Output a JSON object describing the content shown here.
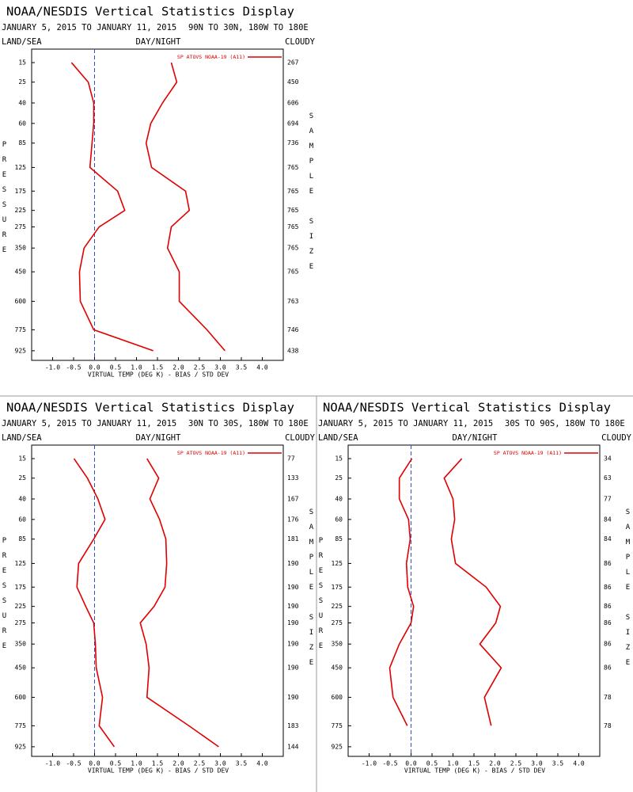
{
  "chart_data": [
    {
      "type": "line",
      "title": "NOAA/NESDIS Vertical Statistics Display",
      "date_range": "JANUARY 5, 2015 TO JANUARY 11, 2015",
      "region": "90N TO 30N, 180W TO 180E",
      "land_sea": "LAND/SEA",
      "day_night": "DAY/NIGHT",
      "cloudy": "CLOUDY",
      "ylabel": "PRESSURE",
      "y2label": "SAMPLE SIZE",
      "xlabel": "VIRTUAL TEMP (DEG K) - BIAS / STD DEV",
      "legend": "SP ATOVS NOAA-19 (A11)",
      "y": [
        15,
        25,
        40,
        60,
        85,
        125,
        175,
        225,
        275,
        350,
        450,
        600,
        775,
        925
      ],
      "sample_size": [
        267,
        450,
        606,
        694,
        736,
        765,
        765,
        765,
        765,
        765,
        765,
        763,
        746,
        438
      ],
      "ylim": [
        10,
        1000
      ],
      "xlim": [
        -1.5,
        4.5
      ],
      "xticks": [
        {
          "value": -1,
          "label": "-1.0"
        },
        {
          "value": -0.5,
          "label": "-0.5"
        },
        {
          "value": 0,
          "label": "0.0"
        },
        {
          "value": 0.5,
          "label": "0.5"
        },
        {
          "value": 1,
          "label": "1.0"
        },
        {
          "value": 1.5,
          "label": "1.5"
        },
        {
          "value": 2,
          "label": "2.0"
        },
        {
          "value": 2.5,
          "label": "2.5"
        },
        {
          "value": 3,
          "label": "3.0"
        },
        {
          "value": 3.5,
          "label": "3.5"
        },
        {
          "value": 4,
          "label": "4.0"
        }
      ],
      "zero_line": true,
      "series": [
        {
          "color": "#e00000",
          "values": [
            -0.55,
            -0.15,
            -0.02,
            -0.02,
            -0.06,
            -0.11,
            0.55,
            0.72,
            0.11,
            -0.25,
            -0.36,
            -0.34,
            -0.02,
            1.4
          ]
        },
        {
          "color": "#e00000",
          "values": [
            1.83,
            1.96,
            1.62,
            1.34,
            1.23,
            1.36,
            2.17,
            2.26,
            1.83,
            1.74,
            2.02,
            2.02,
            2.68,
            3.11
          ]
        }
      ]
    },
    {
      "type": "line",
      "title": "NOAA/NESDIS Vertical Statistics Display",
      "date_range": "JANUARY 5, 2015 TO JANUARY 11, 2015",
      "region": "30N TO 30S, 180W TO 180E",
      "land_sea": "LAND/SEA",
      "day_night": "DAY/NIGHT",
      "cloudy": "CLOUDY",
      "ylabel": "PRESSURE",
      "y2label": "SAMPLE SIZE",
      "xlabel": "VIRTUAL TEMP (DEG K) - BIAS / STD DEV",
      "legend": "SP ATOVS NOAA-19 (A11)",
      "y": [
        15,
        25,
        40,
        60,
        85,
        125,
        175,
        225,
        275,
        350,
        450,
        600,
        775,
        925
      ],
      "sample_size": [
        77,
        133,
        167,
        176,
        181,
        190,
        190,
        190,
        190,
        190,
        190,
        190,
        183,
        144
      ],
      "ylim": [
        10,
        1000
      ],
      "xlim": [
        -1.5,
        4.5
      ],
      "xticks": [
        {
          "value": -1,
          "label": "-1.0"
        },
        {
          "value": -0.5,
          "label": "-0.5"
        },
        {
          "value": 0,
          "label": "0.0"
        },
        {
          "value": 0.5,
          "label": "0.5"
        },
        {
          "value": 1,
          "label": "1.0"
        },
        {
          "value": 1.5,
          "label": "1.5"
        },
        {
          "value": 2,
          "label": "2.0"
        },
        {
          "value": 2.5,
          "label": "2.5"
        },
        {
          "value": 3,
          "label": "3.0"
        },
        {
          "value": 3.5,
          "label": "3.5"
        },
        {
          "value": 4,
          "label": "4.0"
        }
      ],
      "zero_line": true,
      "series": [
        {
          "color": "#e00000",
          "values": [
            -0.49,
            -0.17,
            0.08,
            0.25,
            -0.02,
            -0.38,
            -0.42,
            -0.21,
            -0.02,
            0.02,
            0.04,
            0.19,
            0.11,
            0.47
          ]
        },
        {
          "color": "#e00000",
          "values": [
            1.25,
            1.53,
            1.32,
            1.55,
            1.7,
            1.72,
            1.68,
            1.42,
            1.09,
            1.23,
            1.3,
            1.25,
            2.25,
            2.96
          ]
        }
      ]
    },
    {
      "type": "line",
      "title": "NOAA/NESDIS Vertical Statistics Display",
      "date_range": "JANUARY 5, 2015 TO JANUARY 11, 2015",
      "region": "30S TO 90S, 180W TO 180E",
      "land_sea": "LAND/SEA",
      "day_night": "DAY/NIGHT",
      "cloudy": "CLOUDY",
      "ylabel": "PRESSURE",
      "y2label": "SAMPLE SIZE",
      "xlabel": "VIRTUAL TEMP (DEG K) - BIAS / STD DEV",
      "legend": "SP ATOVS NOAA-19 (A11)",
      "y": [
        15,
        25,
        40,
        60,
        85,
        125,
        175,
        225,
        275,
        350,
        450,
        600,
        775,
        925
      ],
      "sample_size": [
        34,
        63,
        77,
        84,
        84,
        86,
        86,
        86,
        86,
        86,
        86,
        78,
        78,
        null
      ],
      "ylim": [
        10,
        1000
      ],
      "xlim": [
        -1.5,
        4.5
      ],
      "xticks": [
        {
          "value": -1,
          "label": "-1.0"
        },
        {
          "value": -0.5,
          "label": "-0.5"
        },
        {
          "value": 0,
          "label": "0.0"
        },
        {
          "value": 0.5,
          "label": "0.5"
        },
        {
          "value": 1,
          "label": "1.0"
        },
        {
          "value": 1.5,
          "label": "1.5"
        },
        {
          "value": 2,
          "label": "2.0"
        },
        {
          "value": 2.5,
          "label": "2.5"
        },
        {
          "value": 3,
          "label": "3.0"
        },
        {
          "value": 3.5,
          "label": "3.5"
        },
        {
          "value": 4,
          "label": "4.0"
        }
      ],
      "zero_line": true,
      "series": [
        {
          "color": "#e00000",
          "values": [
            0.02,
            -0.28,
            -0.28,
            -0.06,
            -0.02,
            -0.11,
            -0.08,
            0.06,
            0,
            -0.28,
            -0.51,
            -0.43,
            -0.09,
            null
          ]
        },
        {
          "color": "#e00000",
          "values": [
            1.21,
            0.79,
            1.0,
            1.04,
            0.96,
            1.06,
            1.79,
            2.13,
            2.02,
            1.64,
            2.15,
            1.75,
            1.91,
            null
          ]
        }
      ]
    }
  ]
}
